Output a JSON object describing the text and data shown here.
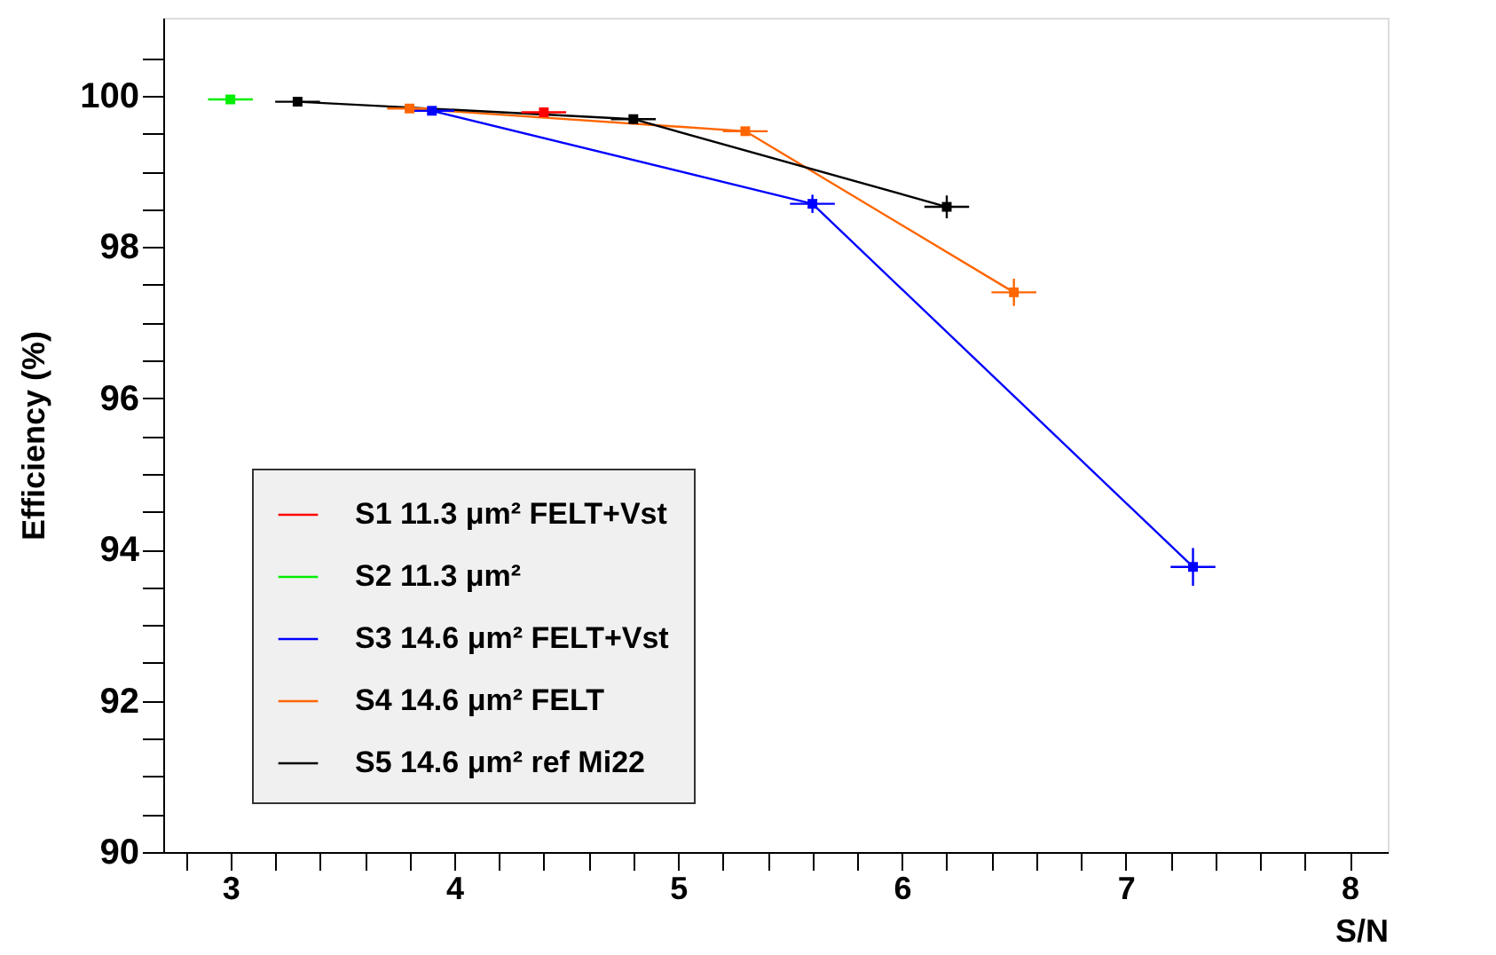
{
  "chart_data": {
    "type": "line",
    "xlabel": "S/N",
    "ylabel": "Efficiency (%)",
    "xlim": [
      2.7,
      8.17
    ],
    "ylim": [
      90,
      101.03
    ],
    "xticks": [
      {
        "value": 2.8,
        "label": null
      },
      3,
      {
        "value": 3.2,
        "label": null
      },
      {
        "value": 3.4,
        "label": null
      },
      {
        "value": 3.6,
        "label": null
      },
      {
        "value": 3.8,
        "label": null
      },
      4,
      {
        "value": 4.2,
        "label": null
      },
      {
        "value": 4.4,
        "label": null
      },
      {
        "value": 4.6,
        "label": null
      },
      {
        "value": 4.8,
        "label": null
      },
      5,
      {
        "value": 5.2,
        "label": null
      },
      {
        "value": 5.4,
        "label": null
      },
      {
        "value": 5.6,
        "label": null
      },
      {
        "value": 5.8,
        "label": null
      },
      6,
      {
        "value": 6.2,
        "label": null
      },
      {
        "value": 6.4,
        "label": null
      },
      {
        "value": 6.6,
        "label": null
      },
      {
        "value": 6.8,
        "label": null
      },
      7,
      {
        "value": 7.2,
        "label": null
      },
      {
        "value": 7.4,
        "label": null
      },
      {
        "value": 7.6,
        "label": null
      },
      {
        "value": 7.8,
        "label": null
      },
      8
    ],
    "yticks": [
      90,
      {
        "value": 90.5,
        "label": null
      },
      {
        "value": 91,
        "label": null
      },
      {
        "value": 91.5,
        "label": null
      },
      92,
      {
        "value": 92.5,
        "label": null
      },
      {
        "value": 93,
        "label": null
      },
      {
        "value": 93.5,
        "label": null
      },
      94,
      {
        "value": 94.5,
        "label": null
      },
      {
        "value": 95,
        "label": null
      },
      {
        "value": 95.5,
        "label": null
      },
      96,
      {
        "value": 96.5,
        "label": null
      },
      {
        "value": 97,
        "label": null
      },
      {
        "value": 97.5,
        "label": null
      },
      98,
      {
        "value": 98.5,
        "label": null
      },
      {
        "value": 99,
        "label": null
      },
      {
        "value": 99.5,
        "label": null
      },
      100,
      {
        "value": 100.5,
        "label": null
      }
    ],
    "grid": false,
    "legend": "bottom left",
    "marker": "square",
    "line_style": "solid",
    "series": [
      {
        "name": "S1 11.3 μm² FELT+Vst",
        "color": "#ff0000",
        "x": [
          4.4
        ],
        "values": [
          99.78
        ],
        "errors": [
          0.03
        ],
        "xerrors": [
          0.1
        ]
      },
      {
        "name": "S2 11.3 μm²",
        "color": "#00ee00",
        "x": [
          3.0
        ],
        "values": [
          99.95
        ],
        "errors": [
          0.02
        ],
        "xerrors": [
          0.1
        ]
      },
      {
        "name": "S3 14.6 μm² FELT+Vst",
        "color": "#0000ff",
        "x": [
          3.9,
          5.6,
          7.3
        ],
        "values": [
          99.8,
          98.57,
          93.77
        ],
        "errors": [
          0.03,
          0.12,
          0.25
        ],
        "xerrors": [
          0.1,
          0.1,
          0.1
        ]
      },
      {
        "name": "S4 14.6 μm² FELT",
        "color": "#ff6600",
        "x": [
          3.8,
          5.3,
          6.5
        ],
        "values": [
          99.83,
          99.53,
          97.4
        ],
        "errors": [
          0.03,
          0.05,
          0.18
        ],
        "xerrors": [
          0.1,
          0.1,
          0.1
        ]
      },
      {
        "name": "S5 14.6 μm² ref Mi22",
        "color": "#000000",
        "x": [
          3.3,
          4.8,
          6.2
        ],
        "values": [
          99.92,
          99.69,
          98.53
        ],
        "errors": [
          0.02,
          0.06,
          0.15
        ],
        "xerrors": [
          0.1,
          0.1,
          0.1
        ]
      }
    ]
  }
}
